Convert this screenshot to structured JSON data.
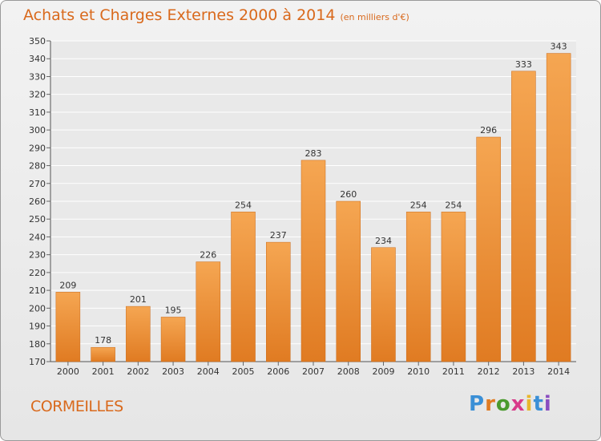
{
  "chart_data": {
    "type": "bar",
    "title": "Achats et Charges Externes 2000 à 2014",
    "subtitle": "(en milliers d'€)",
    "categories": [
      "2000",
      "2001",
      "2002",
      "2003",
      "2004",
      "2005",
      "2006",
      "2007",
      "2008",
      "2009",
      "2010",
      "2011",
      "2012",
      "2013",
      "2014"
    ],
    "values": [
      209,
      178,
      201,
      195,
      226,
      254,
      237,
      283,
      260,
      234,
      254,
      254,
      296,
      333,
      343
    ],
    "ylim": [
      170,
      350
    ],
    "ytick_step": 10,
    "grid": true,
    "colors": {
      "bar_light": "#f5a652",
      "bar_dark": "#e07b22",
      "title": "#d9691c"
    }
  },
  "footer": {
    "place": "CORMEILLES",
    "logo": "Proxiti",
    "logo_colors": [
      "#3a8fd6",
      "#e07b22",
      "#4a9a2e",
      "#d83a8a",
      "#e8b62c",
      "#3a8fd6",
      "#8a4ec0"
    ]
  }
}
